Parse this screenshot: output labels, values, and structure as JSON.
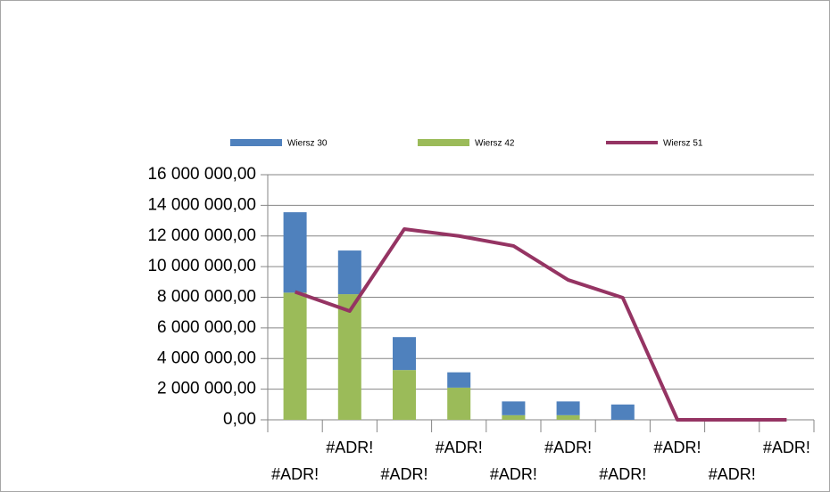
{
  "chart_data": {
    "type": "bar",
    "stacked": true,
    "legend": "top",
    "categories": [
      "#ADR!",
      "#ADR!",
      "#ADR!",
      "#ADR!",
      "#ADR!",
      "#ADR!",
      "#ADR!",
      "#ADR!",
      "#ADR!",
      "#ADR!"
    ],
    "series": [
      {
        "name": "Wiersz 30",
        "type": "bar",
        "color": "#4f81bd",
        "values": [
          5250000,
          2850000,
          2150000,
          1000000,
          900000,
          900000,
          1000000,
          0,
          0,
          0
        ]
      },
      {
        "name": "Wiersz 42",
        "type": "bar",
        "color": "#9bbb59",
        "values": [
          8300000,
          8200000,
          3250000,
          2100000,
          300000,
          300000,
          0,
          0,
          0,
          0
        ]
      },
      {
        "name": "Wiersz 51",
        "type": "line",
        "color": "#953463",
        "values": [
          8350000,
          7100000,
          12450000,
          12000000,
          11350000,
          9130000,
          7970000,
          0,
          0,
          0
        ]
      }
    ],
    "ylim": [
      0,
      16000000
    ],
    "yticks": [
      {
        "value": 0,
        "label": "0,00"
      },
      {
        "value": 2000000,
        "label": "2 000 000,00"
      },
      {
        "value": 4000000,
        "label": "4 000 000,00"
      },
      {
        "value": 6000000,
        "label": "6 000 000,00"
      },
      {
        "value": 8000000,
        "label": "8 000 000,00"
      },
      {
        "value": 10000000,
        "label": "10 000 000,00"
      },
      {
        "value": 12000000,
        "label": "12 000 000,00"
      },
      {
        "value": 14000000,
        "label": "14 000 000,00"
      },
      {
        "value": 16000000,
        "label": "16 000 000,00"
      }
    ],
    "grid": true
  }
}
